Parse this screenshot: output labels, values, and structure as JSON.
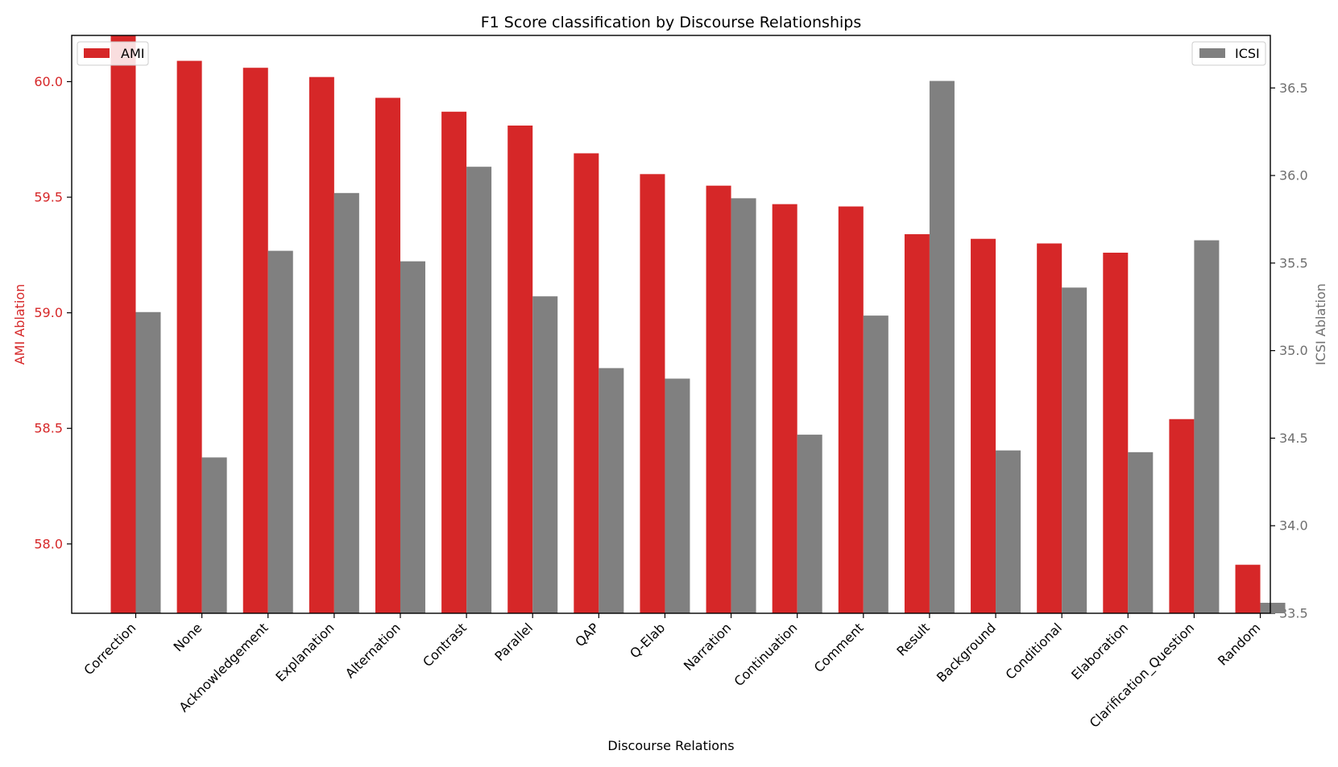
{
  "chart_data": {
    "type": "bar",
    "title": "F1 Score classification by Discourse Relationships",
    "xlabel": "Discourse Relations",
    "categories": [
      "Correction",
      "None",
      "Acknowledgement",
      "Explanation",
      "Alternation",
      "Contrast",
      "Parallel",
      "QAP",
      "Q-Elab",
      "Narration",
      "Continuation",
      "Comment",
      "Result",
      "Background",
      "Conditional",
      "Elaboration",
      "Clarification_Question",
      "Random"
    ],
    "series": [
      {
        "name": "AMI",
        "axis": "left",
        "color": "#d62728",
        "values": [
          60.2,
          60.09,
          60.06,
          60.02,
          59.93,
          59.87,
          59.81,
          59.69,
          59.6,
          59.55,
          59.47,
          59.46,
          59.34,
          59.32,
          59.3,
          59.26,
          58.54,
          57.91
        ]
      },
      {
        "name": "ICSI",
        "axis": "right",
        "color": "#808080",
        "values": [
          35.22,
          34.39,
          35.57,
          35.9,
          35.51,
          36.05,
          35.31,
          34.9,
          34.84,
          35.87,
          34.52,
          35.2,
          36.54,
          34.43,
          35.36,
          34.42,
          35.63,
          33.56
        ]
      }
    ],
    "left_axis": {
      "label": "AMI Ablation",
      "color": "#d62728",
      "ylim": [
        57.7,
        60.2
      ],
      "ticks": [
        58.0,
        58.5,
        59.0,
        59.5,
        60.0
      ],
      "tick_labels": [
        "58.0",
        "58.5",
        "59.0",
        "59.5",
        "60.0"
      ]
    },
    "right_axis": {
      "label": "ICSI Ablation",
      "color": "#6f6f6f",
      "ylim": [
        33.5,
        36.8
      ],
      "ticks": [
        33.5,
        34.0,
        34.5,
        35.0,
        35.5,
        36.0,
        36.5
      ],
      "tick_labels": [
        "33.5",
        "34.0",
        "34.5",
        "35.0",
        "35.5",
        "36.0",
        "36.5"
      ]
    },
    "legends": [
      {
        "series": "AMI",
        "label": "AMI",
        "placement": "top-left"
      },
      {
        "series": "ICSI",
        "label": "ICSI",
        "placement": "top-right"
      }
    ]
  }
}
